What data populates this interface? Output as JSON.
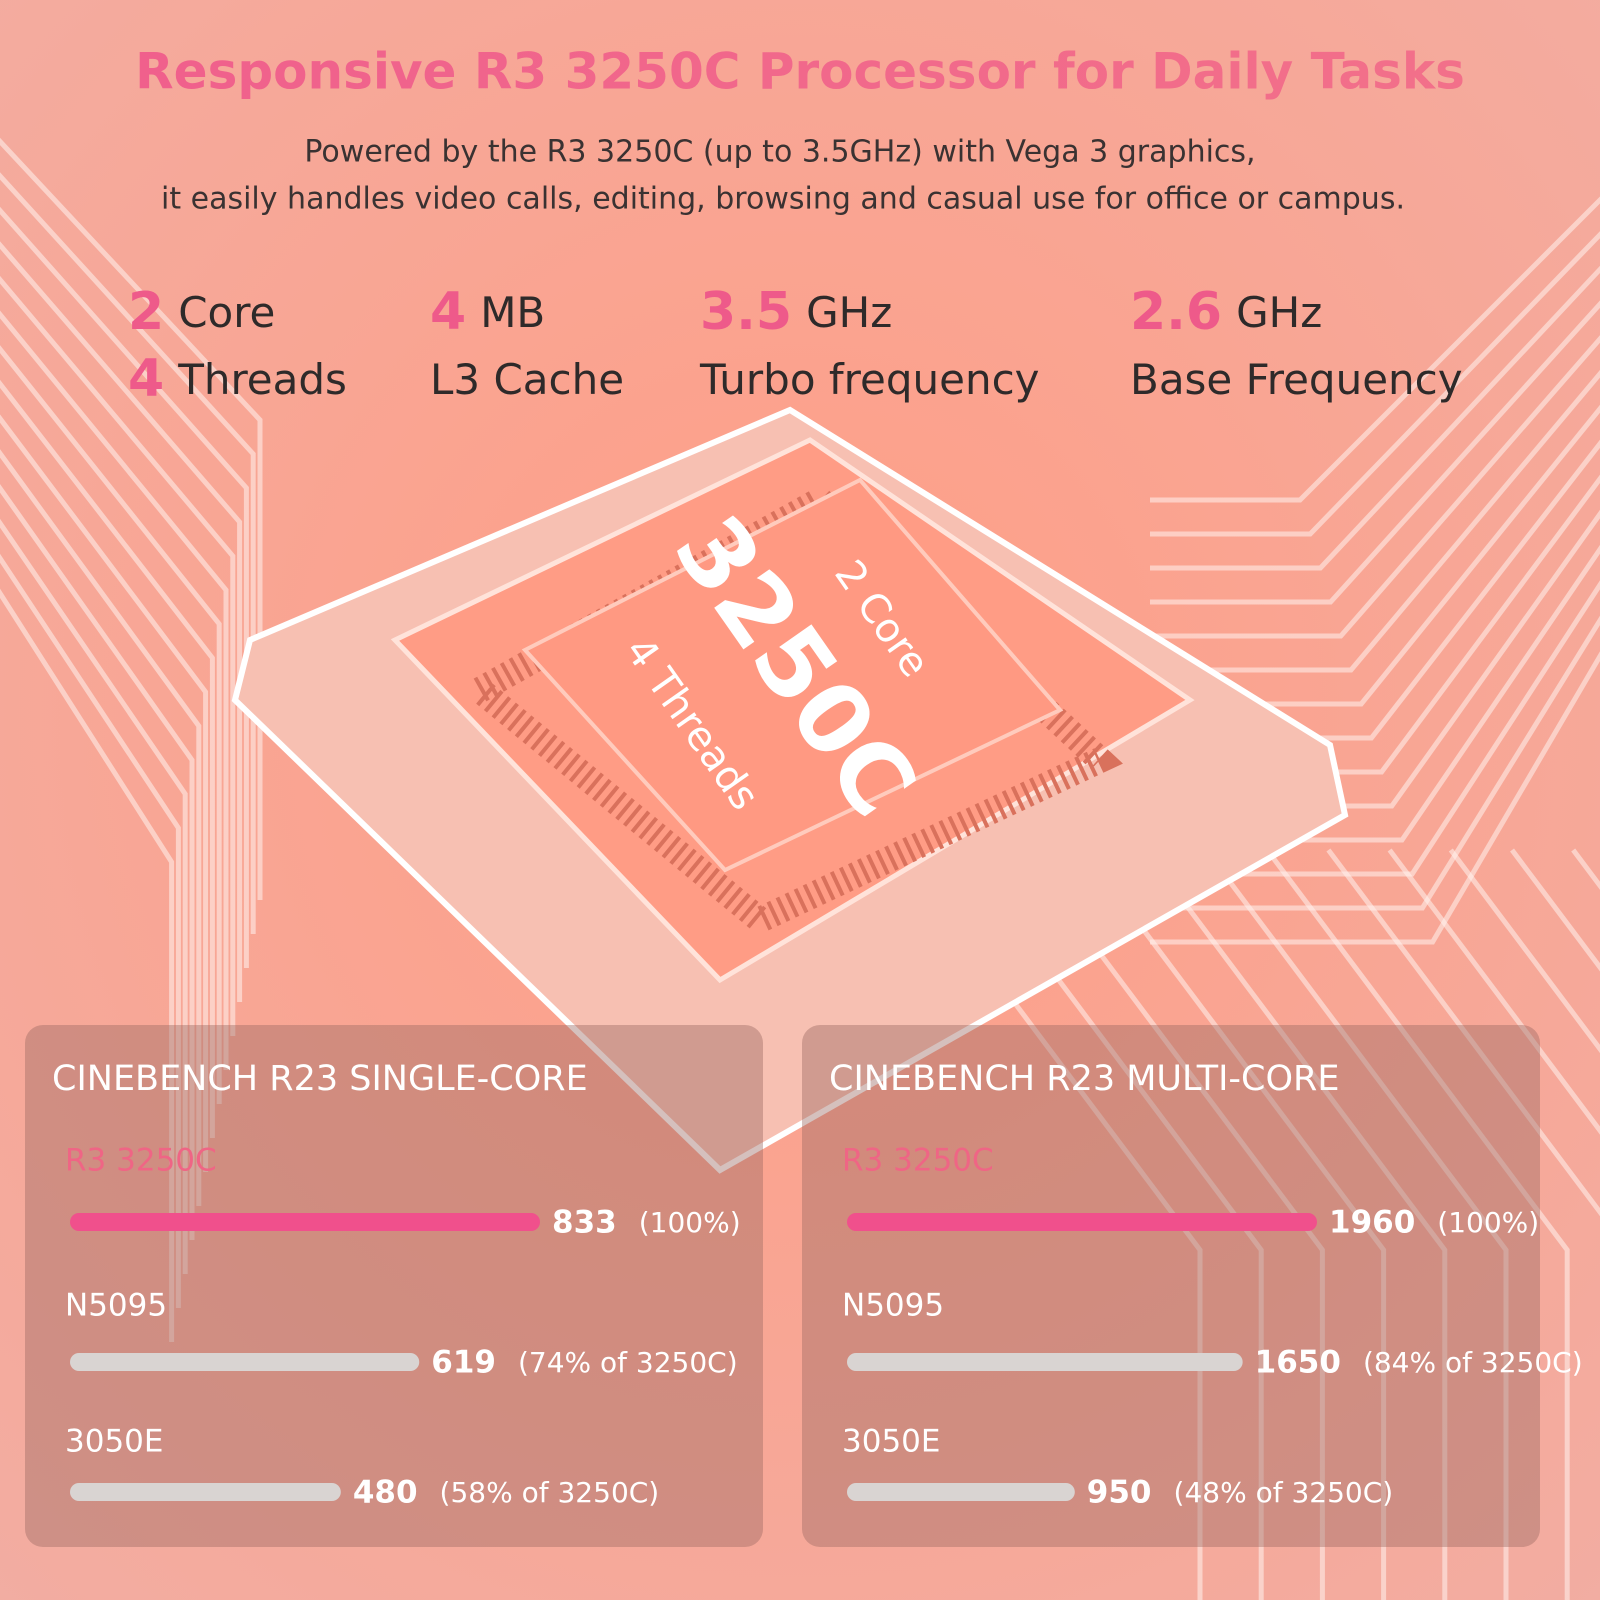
{
  "header": {
    "title": "Responsive R3 3250C Processor for Daily Tasks",
    "subtitle_lines": [
      "Powered by the R3 3250C (up to 3.5GHz) with Vega 3 graphics,",
      "it easily handles video calls, editing, browsing and casual use for office or campus."
    ]
  },
  "specs": [
    {
      "number": "2",
      "unit": "Core",
      "number2": "4",
      "label": "Threads"
    },
    {
      "number": "4",
      "unit": "MB",
      "label": "L3 Cache"
    },
    {
      "number": "3.5",
      "unit": "GHz",
      "label": "Turbo frequency"
    },
    {
      "number": "2.6",
      "unit": "GHz",
      "label": "Base Frequency"
    }
  ],
  "accent_color": "#ee5a8a",
  "chip": {
    "model": "3250C",
    "line1": "2 Core",
    "line2": "4 Threads"
  },
  "chart_data": [
    {
      "type": "bar",
      "orientation": "horizontal",
      "title": "CINEBENCH R23 SINGLE-CORE",
      "categories": [
        "R3 3250C",
        "N5095",
        "3050E"
      ],
      "values": [
        833,
        619,
        480
      ],
      "annotations": [
        "(100%)",
        "(74% of 3250C)",
        "(58% of 3250C)"
      ],
      "colors": [
        "#f0508c",
        "#d9d4d2",
        "#d9d4d2"
      ],
      "highlight_color": "#ef6585"
    },
    {
      "type": "bar",
      "orientation": "horizontal",
      "title": "CINEBENCH R23 MULTI-CORE",
      "categories": [
        "R3 3250C",
        "N5095",
        "3050E"
      ],
      "values": [
        1960,
        1650,
        950
      ],
      "annotations": [
        "(100%)",
        "(84% of 3250C)",
        "(48% of 3250C)"
      ],
      "colors": [
        "#f0508c",
        "#d9d4d2",
        "#d9d4d2"
      ],
      "highlight_color": "#ef6585"
    }
  ]
}
